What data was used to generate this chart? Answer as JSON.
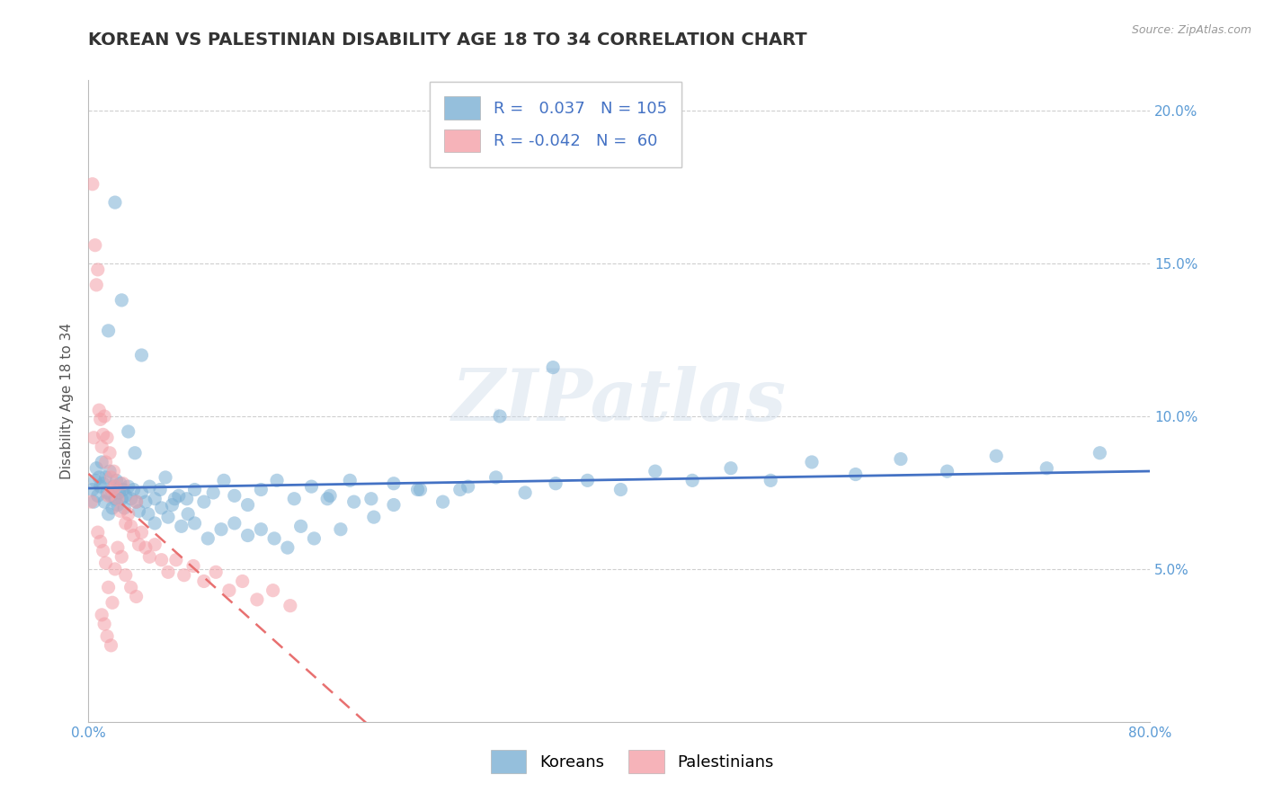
{
  "title": "KOREAN VS PALESTINIAN DISABILITY AGE 18 TO 34 CORRELATION CHART",
  "source_text": "Source: ZipAtlas.com",
  "ylabel": "Disability Age 18 to 34",
  "xlim": [
    0.0,
    0.8
  ],
  "ylim": [
    0.0,
    0.21
  ],
  "xticks": [
    0.0,
    0.1,
    0.2,
    0.3,
    0.4,
    0.5,
    0.6,
    0.7,
    0.8
  ],
  "xticklabels": [
    "0.0%",
    "",
    "",
    "",
    "",
    "",
    "",
    "",
    "80.0%"
  ],
  "yticks": [
    0.0,
    0.05,
    0.1,
    0.15,
    0.2
  ],
  "yticklabels": [
    "",
    "5.0%",
    "10.0%",
    "15.0%",
    "20.0%"
  ],
  "korean_color": "#7BAFD4",
  "palestinian_color": "#F4A0A8",
  "korean_line_color": "#4472C4",
  "palestinian_line_color": "#E87070",
  "R_korean": 0.037,
  "N_korean": 105,
  "R_palestinian": -0.042,
  "N_palestinian": 60,
  "watermark": "ZIPatlas",
  "background_color": "#FFFFFF",
  "grid_color": "#BBBBBB",
  "title_color": "#333333",
  "title_fontsize": 14,
  "axis_label_fontsize": 11,
  "tick_fontsize": 11,
  "tick_color": "#5B9BD5",
  "korean_x": [
    0.003,
    0.004,
    0.005,
    0.006,
    0.007,
    0.008,
    0.009,
    0.01,
    0.011,
    0.012,
    0.013,
    0.014,
    0.015,
    0.016,
    0.017,
    0.018,
    0.019,
    0.02,
    0.021,
    0.022,
    0.023,
    0.024,
    0.025,
    0.026,
    0.027,
    0.028,
    0.03,
    0.032,
    0.034,
    0.036,
    0.038,
    0.04,
    0.043,
    0.046,
    0.05,
    0.054,
    0.058,
    0.063,
    0.068,
    0.074,
    0.08,
    0.087,
    0.094,
    0.102,
    0.11,
    0.12,
    0.13,
    0.142,
    0.155,
    0.168,
    0.182,
    0.197,
    0.213,
    0.23,
    0.248,
    0.267,
    0.286,
    0.307,
    0.329,
    0.352,
    0.376,
    0.401,
    0.427,
    0.455,
    0.484,
    0.514,
    0.545,
    0.578,
    0.612,
    0.647,
    0.684,
    0.722,
    0.762,
    0.015,
    0.02,
    0.025,
    0.03,
    0.035,
    0.04,
    0.045,
    0.05,
    0.055,
    0.06,
    0.065,
    0.07,
    0.075,
    0.08,
    0.09,
    0.1,
    0.11,
    0.12,
    0.13,
    0.14,
    0.15,
    0.16,
    0.17,
    0.18,
    0.19,
    0.2,
    0.215,
    0.23,
    0.25,
    0.28,
    0.31,
    0.35
  ],
  "korean_y": [
    0.076,
    0.072,
    0.079,
    0.083,
    0.074,
    0.08,
    0.077,
    0.085,
    0.078,
    0.072,
    0.08,
    0.075,
    0.068,
    0.082,
    0.074,
    0.07,
    0.077,
    0.073,
    0.079,
    0.071,
    0.075,
    0.078,
    0.073,
    0.076,
    0.07,
    0.074,
    0.077,
    0.073,
    0.076,
    0.072,
    0.069,
    0.075,
    0.072,
    0.077,
    0.073,
    0.076,
    0.08,
    0.071,
    0.074,
    0.073,
    0.076,
    0.072,
    0.075,
    0.079,
    0.074,
    0.071,
    0.076,
    0.079,
    0.073,
    0.077,
    0.074,
    0.079,
    0.073,
    0.078,
    0.076,
    0.072,
    0.077,
    0.08,
    0.075,
    0.078,
    0.079,
    0.076,
    0.082,
    0.079,
    0.083,
    0.079,
    0.085,
    0.081,
    0.086,
    0.082,
    0.087,
    0.083,
    0.088,
    0.128,
    0.17,
    0.138,
    0.095,
    0.088,
    0.12,
    0.068,
    0.065,
    0.07,
    0.067,
    0.073,
    0.064,
    0.068,
    0.065,
    0.06,
    0.063,
    0.065,
    0.061,
    0.063,
    0.06,
    0.057,
    0.064,
    0.06,
    0.073,
    0.063,
    0.072,
    0.067,
    0.071,
    0.076,
    0.076,
    0.1,
    0.116
  ],
  "palestinian_x": [
    0.002,
    0.003,
    0.004,
    0.005,
    0.006,
    0.007,
    0.008,
    0.009,
    0.01,
    0.011,
    0.012,
    0.013,
    0.014,
    0.015,
    0.016,
    0.017,
    0.018,
    0.019,
    0.02,
    0.022,
    0.024,
    0.026,
    0.028,
    0.03,
    0.032,
    0.034,
    0.036,
    0.038,
    0.04,
    0.043,
    0.046,
    0.05,
    0.055,
    0.06,
    0.066,
    0.072,
    0.079,
    0.087,
    0.096,
    0.106,
    0.116,
    0.127,
    0.139,
    0.152,
    0.02,
    0.022,
    0.025,
    0.028,
    0.032,
    0.036,
    0.01,
    0.012,
    0.014,
    0.017,
    0.007,
    0.009,
    0.011,
    0.013,
    0.015,
    0.018
  ],
  "palestinian_y": [
    0.072,
    0.176,
    0.093,
    0.156,
    0.143,
    0.148,
    0.102,
    0.099,
    0.09,
    0.094,
    0.1,
    0.085,
    0.093,
    0.074,
    0.088,
    0.08,
    0.076,
    0.082,
    0.077,
    0.073,
    0.069,
    0.078,
    0.065,
    0.068,
    0.064,
    0.061,
    0.072,
    0.058,
    0.062,
    0.057,
    0.054,
    0.058,
    0.053,
    0.049,
    0.053,
    0.048,
    0.051,
    0.046,
    0.049,
    0.043,
    0.046,
    0.04,
    0.043,
    0.038,
    0.05,
    0.057,
    0.054,
    0.048,
    0.044,
    0.041,
    0.035,
    0.032,
    0.028,
    0.025,
    0.062,
    0.059,
    0.056,
    0.052,
    0.044,
    0.039
  ]
}
